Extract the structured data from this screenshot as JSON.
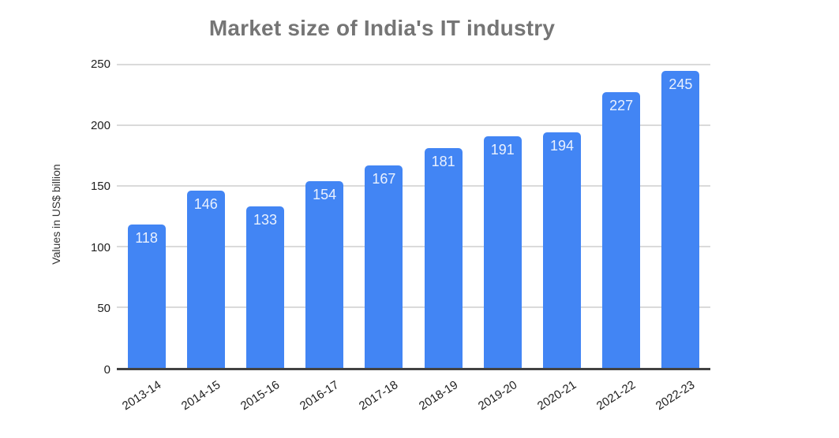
{
  "chart_data": {
    "type": "bar",
    "title": "Market size of India's IT industry",
    "xlabel": "",
    "ylabel": "Values in US$ billion",
    "categories": [
      "2013-14",
      "2014-15",
      "2015-16",
      "2016-17",
      "2017-18",
      "2018-19",
      "2019-20",
      "2020-21",
      "2021-22",
      "2022-23"
    ],
    "values": [
      118,
      146,
      133,
      154,
      167,
      181,
      191,
      194,
      227,
      245
    ],
    "ylim": [
      0,
      250
    ],
    "yticks": [
      0,
      50,
      100,
      150,
      200,
      250
    ],
    "grid": true,
    "legend": "none",
    "colors": {
      "bar": "#4285f4",
      "bar_label": "#eaf1fe",
      "title": "#757575",
      "axis_text": "#212121",
      "gridline": "#dadada",
      "baseline": "#424242",
      "background": "#ffffff"
    }
  }
}
